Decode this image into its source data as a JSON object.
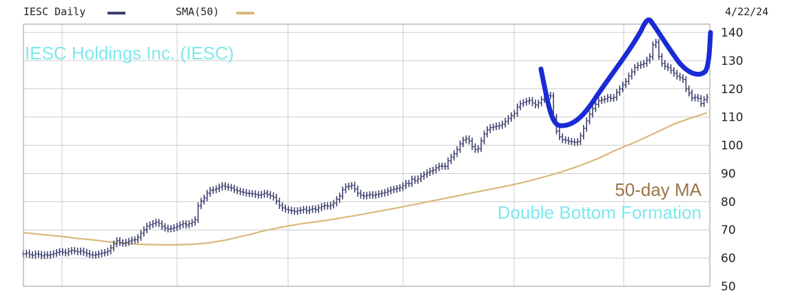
{
  "header": {
    "symbol_label": "IESC Daily",
    "sma_label": "SMA(50)",
    "date": "4/22/24"
  },
  "colors": {
    "price_bars": "#3b3f6e",
    "sma_line": "#d9b87a",
    "grid": "#cccccc",
    "company_text": "#7ee8ec",
    "ma_text": "#9a7346",
    "pattern_text": "#7ee8ec",
    "pattern_stroke": "#1a2bd6"
  },
  "annotations": {
    "company": "IESC Holdings Inc. (IESC)",
    "ma": "50-day MA",
    "pattern": "Double Bottom Formation"
  },
  "chart_data": {
    "type": "line",
    "ylim": [
      50,
      140
    ],
    "yticks": [
      50,
      60,
      70,
      80,
      90,
      100,
      110,
      120,
      130,
      140
    ],
    "grid": true,
    "legend": "top-left",
    "series": [
      {
        "name": "IESC Daily",
        "style": "ohlc-bars",
        "values": [
          61.5,
          61.8,
          61.2,
          61,
          61.5,
          61.3,
          60.8,
          61.2,
          61,
          61.3,
          61.6,
          62,
          62.3,
          62.1,
          61.8,
          62.4,
          62.7,
          62.5,
          62.2,
          62.5,
          62,
          61.6,
          61.2,
          61,
          61.2,
          61.5,
          61.8,
          62,
          62.5,
          63.6,
          65,
          66.2,
          65.5,
          65.2,
          65.6,
          66,
          66.4,
          66.5,
          67.3,
          68.8,
          70,
          71.3,
          71.8,
          72.3,
          72.7,
          72.2,
          71.2,
          70.6,
          70.3,
          70.5,
          70.8,
          71.3,
          71.8,
          72.2,
          71.7,
          72.2,
          72.7,
          73.6,
          78.5,
          80.2,
          81.3,
          83,
          84,
          84.2,
          84.6,
          85.2,
          85.7,
          85.3,
          85.1,
          84.8,
          84.2,
          83.8,
          83.5,
          83.3,
          83,
          82.9,
          82.8,
          82.5,
          82.3,
          82.6,
          83,
          82.6,
          82.1,
          81.6,
          80.2,
          78.6,
          77.8,
          77.3,
          77,
          76.8,
          76.5,
          76.8,
          77,
          77.3,
          76.8,
          77.2,
          77.5,
          77.2,
          77.8,
          78.3,
          78.6,
          78.4,
          78.8,
          79.5,
          80.8,
          82,
          84.2,
          85.3,
          85.5,
          85.8,
          84.5,
          83,
          82.3,
          82,
          82.3,
          82.5,
          82.2,
          82.5,
          82.8,
          83,
          83.3,
          83.8,
          84.2,
          84.4,
          84.7,
          85,
          85.7,
          86.5,
          86.4,
          88,
          87.5,
          88.1,
          89,
          89.6,
          90.3,
          90.8,
          91.2,
          92,
          92.6,
          92.6,
          92.5,
          94.5,
          95.8,
          97,
          98.5,
          100.5,
          101.8,
          102.3,
          101.5,
          99.5,
          98.5,
          98.8,
          101.5,
          104,
          105.5,
          106.3,
          106.5,
          106.8,
          107,
          107.5,
          108.5,
          109.5,
          110.5,
          111.3,
          113.6,
          114.7,
          115.2,
          115.6,
          115.9,
          115,
          114.3,
          115,
          116.2,
          117.3,
          117.8,
          117.5,
          110,
          105,
          103,
          102,
          101.8,
          101.4,
          101.2,
          101,
          101.3,
          103.3,
          106,
          108.6,
          111,
          113,
          114.5,
          115.8,
          116.1,
          116.4,
          117,
          116.6,
          117,
          118.7,
          120,
          121.4,
          122.6,
          124.5,
          126,
          127.6,
          128.3,
          128.6,
          129,
          130.2,
          131.4,
          135.6,
          136.5,
          131.5,
          129,
          128,
          127.5,
          126.5,
          125.5,
          124.5,
          124,
          123.3,
          120,
          118.5,
          116.8,
          117,
          116.6,
          114.8,
          116.2,
          117
        ]
      },
      {
        "name": "SMA(50)",
        "style": "line",
        "values": [
          69,
          68.7,
          68.4,
          68.1,
          67.8,
          67.5,
          67.1,
          66.8,
          66.5,
          66.2,
          65.8,
          65.5,
          65.2,
          65,
          64.9,
          64.8,
          64.7,
          64.7,
          64.7,
          64.8,
          64.9,
          65.1,
          65.4,
          65.9,
          66.4,
          67.1,
          67.8,
          68.5,
          69.3,
          70,
          70.6,
          71.2,
          71.7,
          72.2,
          72.6,
          73,
          73.4,
          73.9,
          74.4,
          74.9,
          75.4,
          76,
          76.5,
          77.1,
          77.6,
          78.2,
          78.8,
          79.4,
          80,
          80.6,
          81.2,
          81.8,
          82.4,
          83,
          83.6,
          84.2,
          84.8,
          85.4,
          86,
          86.7,
          87.4,
          88.2,
          89,
          89.9,
          90.8,
          91.8,
          92.8,
          94,
          95.2,
          96.6,
          98,
          99.3,
          100.5,
          101.8,
          103.2,
          104.6,
          106,
          107.4,
          108.5,
          109.6,
          110.5,
          111.5
        ]
      }
    ]
  }
}
